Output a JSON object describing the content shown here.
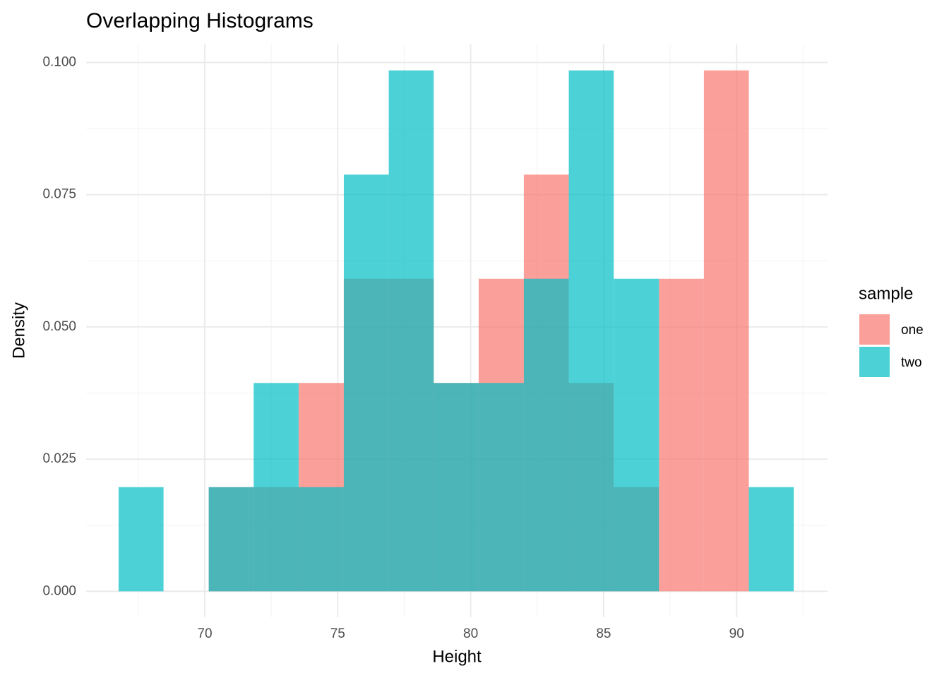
{
  "chart_data": {
    "type": "histogram",
    "title": "Overlapping Histograms",
    "x_label": "Height",
    "y_label": "Density",
    "legend_title": "sample",
    "legend_position": "right",
    "grid": true,
    "bins": [
      66.76,
      68.45,
      70.15,
      71.84,
      73.53,
      75.23,
      76.92,
      78.61,
      80.3,
      82.0,
      83.69,
      85.38,
      87.08,
      88.77,
      90.46,
      92.15
    ],
    "series": [
      {
        "name": "one",
        "color": "#F8766D",
        "values": [
          0,
          0,
          0.0197,
          0.0197,
          0.0394,
          0.0591,
          0.0591,
          0.0394,
          0.0591,
          0.0788,
          0.0394,
          0.0197,
          0.0591,
          0.0985,
          0
        ]
      },
      {
        "name": "two",
        "color": "#00BFC4",
        "values": [
          0.0197,
          0,
          0.0197,
          0.0394,
          0.0197,
          0.0788,
          0.0985,
          0.0394,
          0.0394,
          0.0591,
          0.0985,
          0.0591,
          0,
          0,
          0.0197
        ]
      }
    ],
    "xlim": [
      65.54,
      93.42
    ],
    "xticks": [
      70,
      75,
      80,
      85,
      90
    ],
    "ylim": [
      -0.0049,
      0.1034
    ],
    "yticks": [
      {
        "value": 0,
        "label": "0.000"
      },
      {
        "value": 0.025,
        "label": "0.025"
      },
      {
        "value": 0.05,
        "label": "0.050"
      },
      {
        "value": 0.075,
        "label": "0.075"
      },
      {
        "value": 0.1,
        "label": "0.100"
      }
    ]
  }
}
